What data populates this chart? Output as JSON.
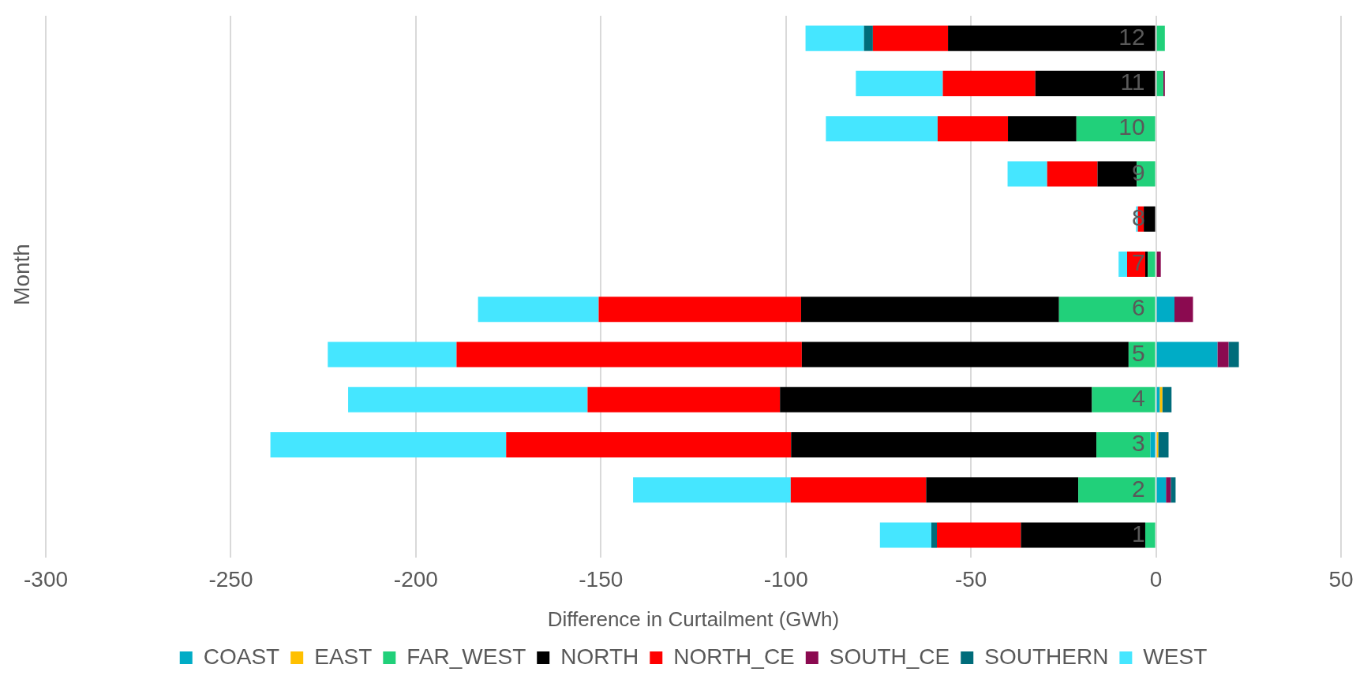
{
  "chart_data": {
    "type": "bar",
    "orientation": "horizontal",
    "stacked": true,
    "xlabel": "Difference in Curtailment (GWh)",
    "ylabel": "Month",
    "categories": [
      "12",
      "11",
      "10",
      "9",
      "8",
      "7",
      "6",
      "5",
      "4",
      "3",
      "2",
      "1"
    ],
    "xlim": [
      -300,
      50
    ],
    "xticks": [
      -300,
      -250,
      -200,
      -150,
      -100,
      -50,
      0,
      50
    ],
    "grid": "x",
    "legend": "bottom",
    "series": [
      {
        "name": "COAST",
        "color": "#00acc6",
        "values": [
          null,
          null,
          null,
          null,
          null,
          null,
          5,
          16.6,
          1,
          -1.5,
          2.7,
          null
        ]
      },
      {
        "name": "EAST",
        "color": "#ffc000",
        "values": [
          null,
          null,
          null,
          null,
          null,
          null,
          null,
          null,
          0.7,
          0.6,
          null,
          null
        ]
      },
      {
        "name": "FAR_WEST",
        "color": "#21d07a",
        "values": [
          2.4,
          2,
          -21.5,
          -5.2,
          null,
          -2.2,
          -26.2,
          -7.4,
          -17.3,
          -14.6,
          -21,
          -2.9
        ]
      },
      {
        "name": "NORTH",
        "color": "#000000",
        "values": [
          -56.2,
          -32.6,
          -18.5,
          -10.6,
          -3.3,
          -0.7,
          -69.7,
          -88.3,
          -84.3,
          -82.5,
          -41.1,
          -33.6
        ]
      },
      {
        "name": "NORTH_CE",
        "color": "#ff0000",
        "values": [
          -20.3,
          -25,
          -19,
          -13.6,
          -1.6,
          -4.9,
          -54.7,
          -93.3,
          -52,
          -77,
          -36.6,
          -22.7
        ]
      },
      {
        "name": "SOUTH_CE",
        "color": "#8b0a50",
        "values": [
          null,
          0.4,
          null,
          null,
          null,
          1.3,
          5,
          3,
          null,
          null,
          1.3,
          null
        ]
      },
      {
        "name": "SOUTHERN",
        "color": "#006c7a",
        "values": [
          -2.4,
          null,
          null,
          null,
          null,
          null,
          null,
          2.8,
          2.5,
          2.8,
          1.3,
          -1.5
        ]
      },
      {
        "name": "WEST",
        "color": "#45e6ff",
        "values": [
          -15.8,
          -23.5,
          -30.2,
          -10.7,
          -0.5,
          -2.3,
          -32.6,
          -34.8,
          -64.7,
          -63.7,
          -42.6,
          -13.9
        ]
      }
    ]
  }
}
